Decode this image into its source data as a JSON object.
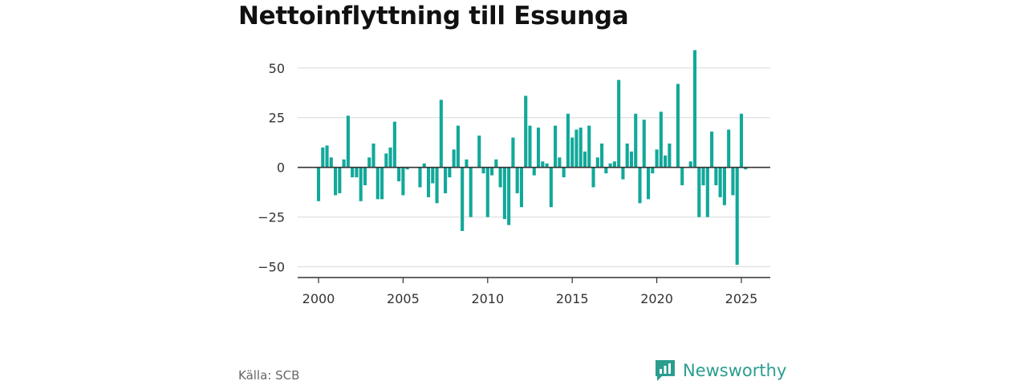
{
  "title": "Nettoinflyttning till Essunga",
  "source": "Källa: SCB",
  "brand": {
    "name": "Newsworthy",
    "icon": "newsworthy-logo-icon",
    "color": "#2a9d8f"
  },
  "chart_data": {
    "type": "bar",
    "x_unit": "quarter",
    "x": [
      "2000-Q1",
      "2000-Q2",
      "2000-Q3",
      "2000-Q4",
      "2001-Q1",
      "2001-Q2",
      "2001-Q3",
      "2001-Q4",
      "2002-Q1",
      "2002-Q2",
      "2002-Q3",
      "2002-Q4",
      "2003-Q1",
      "2003-Q2",
      "2003-Q3",
      "2003-Q4",
      "2004-Q1",
      "2004-Q2",
      "2004-Q3",
      "2004-Q4",
      "2005-Q1",
      "2005-Q2",
      "2005-Q3",
      "2005-Q4",
      "2006-Q1",
      "2006-Q2",
      "2006-Q3",
      "2006-Q4",
      "2007-Q1",
      "2007-Q2",
      "2007-Q3",
      "2007-Q4",
      "2008-Q1",
      "2008-Q2",
      "2008-Q3",
      "2008-Q4",
      "2009-Q1",
      "2009-Q2",
      "2009-Q3",
      "2009-Q4",
      "2010-Q1",
      "2010-Q2",
      "2010-Q3",
      "2010-Q4",
      "2011-Q1",
      "2011-Q2",
      "2011-Q3",
      "2011-Q4",
      "2012-Q1",
      "2012-Q2",
      "2012-Q3",
      "2012-Q4",
      "2013-Q1",
      "2013-Q2",
      "2013-Q3",
      "2013-Q4",
      "2014-Q1",
      "2014-Q2",
      "2014-Q3",
      "2014-Q4",
      "2015-Q1",
      "2015-Q2",
      "2015-Q3",
      "2015-Q4",
      "2016-Q1",
      "2016-Q2",
      "2016-Q3",
      "2016-Q4",
      "2017-Q1",
      "2017-Q2",
      "2017-Q3",
      "2017-Q4",
      "2018-Q1",
      "2018-Q2",
      "2018-Q3",
      "2018-Q4",
      "2019-Q1",
      "2019-Q2",
      "2019-Q3",
      "2019-Q4",
      "2020-Q1",
      "2020-Q2",
      "2020-Q3",
      "2020-Q4",
      "2021-Q1",
      "2021-Q2",
      "2021-Q3",
      "2021-Q4",
      "2022-Q1",
      "2022-Q2",
      "2022-Q3",
      "2022-Q4",
      "2023-Q1",
      "2023-Q2",
      "2023-Q3",
      "2023-Q4",
      "2024-Q1",
      "2024-Q2",
      "2024-Q3",
      "2024-Q4",
      "2025-Q1",
      "2025-Q2"
    ],
    "values": [
      -17,
      10,
      11,
      5,
      -14,
      -13,
      4,
      26,
      -5,
      -5,
      -17,
      -9,
      5,
      12,
      -16,
      -16,
      7,
      10,
      23,
      -7,
      -14,
      -1,
      0,
      0,
      -10,
      2,
      -15,
      -8,
      -18,
      34,
      -13,
      -5,
      9,
      21,
      -32,
      4,
      -25,
      0,
      16,
      -3,
      -25,
      -4,
      4,
      -10,
      -26,
      -29,
      15,
      -13,
      -20,
      36,
      21,
      -4,
      20,
      3,
      2,
      -20,
      21,
      5,
      -5,
      27,
      15,
      19,
      20,
      8,
      21,
      -10,
      5,
      12,
      -3,
      2,
      3,
      44,
      -6,
      12,
      8,
      27,
      -18,
      24,
      -16,
      -3,
      9,
      28,
      6,
      12,
      0,
      42,
      -9,
      0,
      3,
      59,
      -25,
      -9,
      -25,
      18,
      -9,
      -15,
      -19,
      19,
      -14,
      -49,
      27,
      -1
    ],
    "xlabel": "",
    "ylabel": "",
    "xticks": [
      "2000",
      "2005",
      "2010",
      "2015",
      "2020",
      "2025"
    ],
    "yticks": [
      50,
      25,
      0,
      -25,
      -50
    ],
    "ylim": [
      -55,
      60
    ],
    "grid": true,
    "bar_color": "#12a89a"
  }
}
